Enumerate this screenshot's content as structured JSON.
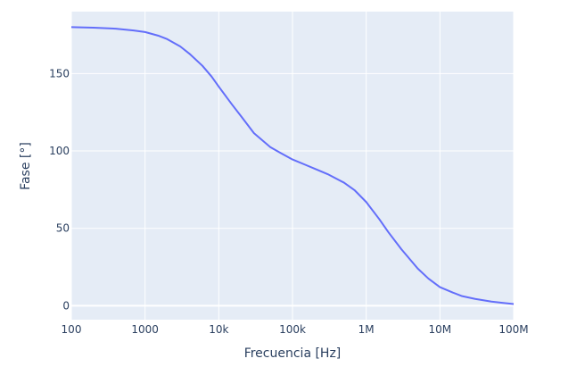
{
  "chart_data": {
    "type": "line",
    "xlabel": "Frecuencia [Hz]",
    "ylabel": "Fase [°]",
    "x_scale": "log",
    "xlim": [
      100,
      100000000
    ],
    "ylim": [
      -9,
      190
    ],
    "grid": true,
    "colors": {
      "plot_bg": "#e5ecf6",
      "grid": "#ffffff",
      "line": "#636efa",
      "text": "#2a3f5f"
    },
    "x_ticks": [
      {
        "value": 100,
        "label": "100"
      },
      {
        "value": 1000,
        "label": "1000"
      },
      {
        "value": 10000,
        "label": "10k"
      },
      {
        "value": 100000,
        "label": "100k"
      },
      {
        "value": 1000000,
        "label": "1M"
      },
      {
        "value": 10000000,
        "label": "10M"
      },
      {
        "value": 100000000,
        "label": "100M"
      }
    ],
    "y_ticks": [
      {
        "value": 0,
        "label": "0"
      },
      {
        "value": 50,
        "label": "50"
      },
      {
        "value": 100,
        "label": "100"
      },
      {
        "value": 150,
        "label": "150"
      }
    ],
    "series": [
      {
        "x": [
          100,
          200,
          400,
          700,
          1000,
          1500,
          2000,
          3000,
          4000,
          6000,
          8000,
          10000,
          15000,
          20000,
          30000,
          50000,
          70000,
          100000,
          150000,
          200000,
          300000,
          500000,
          700000,
          1000000,
          1500000,
          2000000,
          3000000,
          5000000,
          7000000,
          10000000,
          15000000,
          20000000,
          30000000,
          50000000,
          70000000,
          100000000
        ],
        "y": [
          180,
          179.6,
          179,
          177.8,
          176.8,
          174.5,
          172.2,
          167.5,
          162.8,
          155,
          148,
          141.5,
          130.2,
          122.5,
          111.5,
          102.5,
          98.5,
          94.5,
          91,
          88.5,
          85,
          79.5,
          74.5,
          67,
          56,
          47.5,
          36.5,
          24,
          17.5,
          12,
          8.5,
          6.2,
          4.4,
          2.7,
          1.9,
          1.1
        ]
      }
    ]
  }
}
